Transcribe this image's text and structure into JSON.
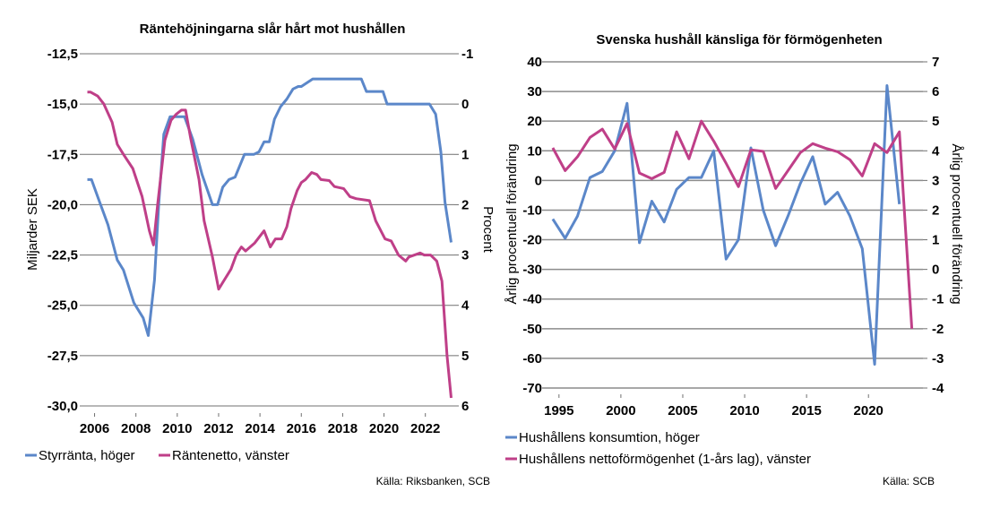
{
  "colors": {
    "blue": "#5B87C9",
    "magenta": "#BF3F88",
    "grid": "#707070"
  },
  "chart_data": [
    {
      "type": "line",
      "title": "Räntehöjningarna slår hårt mot hushållen",
      "ylabel_left": "Miljarder SEK",
      "ylabel_right": "Procent",
      "ylim_left": [
        -30.0,
        -12.5
      ],
      "yticks_left": [
        "-12,5",
        "-15,0",
        "-17,5",
        "-20,0",
        "-22,5",
        "-25,0",
        "-27,5",
        "-30,0"
      ],
      "ylim_right": [
        -1,
        6
      ],
      "right_axis_inverted": true,
      "yticks_right": [
        "-1",
        "0",
        "1",
        "2",
        "3",
        "4",
        "5",
        "6"
      ],
      "xticks": [
        "2006",
        "2008",
        "2010",
        "2012",
        "2014",
        "2016",
        "2018",
        "2020",
        "2022"
      ],
      "xlim": [
        2005.5,
        2023.4
      ],
      "grid": true,
      "legend_position": "bottom",
      "source": "Källa: Riksbanken, SCB",
      "series": [
        {
          "name": "Styrränta, höger",
          "axis": "right",
          "color": "#5B87C9",
          "x": [
            2005.65,
            2005.85,
            2006.2,
            2006.65,
            2007.1,
            2007.4,
            2007.9,
            2008.35,
            2008.6,
            2008.9,
            2009.1,
            2009.35,
            2009.65,
            2010.35,
            2010.75,
            2011.2,
            2011.7,
            2011.95,
            2012.2,
            2012.5,
            2012.8,
            2013.25,
            2013.7,
            2013.95,
            2014.2,
            2014.45,
            2014.7,
            2015.0,
            2015.3,
            2015.6,
            2015.85,
            2016.0,
            2016.55,
            2018.9,
            2019.15,
            2019.95,
            2020.15,
            2022.2,
            2022.5,
            2022.75,
            2022.95,
            2023.25
          ],
          "values": [
            1.5,
            1.5,
            1.9,
            2.4,
            3.1,
            3.3,
            3.95,
            4.25,
            4.6,
            3.5,
            2.0,
            0.6,
            0.25,
            0.25,
            0.7,
            1.4,
            2.0,
            2.0,
            1.65,
            1.5,
            1.45,
            1.0,
            1.0,
            0.95,
            0.75,
            0.75,
            0.3,
            0.05,
            -0.1,
            -0.3,
            -0.35,
            -0.35,
            -0.5,
            -0.5,
            -0.25,
            -0.25,
            0.0,
            0.0,
            0.2,
            0.95,
            1.95,
            2.75
          ]
        },
        {
          "name": "Räntenetto, vänster",
          "axis": "left",
          "color": "#BF3F88",
          "x": [
            2005.65,
            2005.8,
            2006.15,
            2006.45,
            2006.85,
            2007.1,
            2007.4,
            2007.85,
            2008.3,
            2008.65,
            2008.85,
            2009.05,
            2009.4,
            2009.7,
            2009.95,
            2010.2,
            2010.4,
            2010.65,
            2011.05,
            2011.3,
            2011.7,
            2012.0,
            2012.3,
            2012.6,
            2012.85,
            2013.1,
            2013.3,
            2013.75,
            2014.2,
            2014.5,
            2014.75,
            2015.05,
            2015.3,
            2015.5,
            2015.8,
            2016.0,
            2016.2,
            2016.5,
            2016.75,
            2016.95,
            2017.35,
            2017.6,
            2018.05,
            2018.35,
            2018.65,
            2019.3,
            2019.6,
            2020.05,
            2020.35,
            2020.7,
            2021.05,
            2021.2,
            2021.75,
            2021.95,
            2022.25,
            2022.55,
            2022.8,
            2023.05,
            2023.25
          ],
          "values": [
            -14.4,
            -14.4,
            -14.6,
            -15.0,
            -15.9,
            -17.0,
            -17.5,
            -18.2,
            -19.6,
            -21.3,
            -22.0,
            -20.0,
            -16.8,
            -15.8,
            -15.5,
            -15.3,
            -15.3,
            -16.7,
            -18.75,
            -20.8,
            -22.6,
            -24.2,
            -23.7,
            -23.2,
            -22.5,
            -22.1,
            -22.3,
            -21.9,
            -21.3,
            -22.1,
            -21.7,
            -21.7,
            -21.1,
            -20.2,
            -19.3,
            -18.9,
            -18.75,
            -18.4,
            -18.5,
            -18.75,
            -18.8,
            -19.1,
            -19.2,
            -19.6,
            -19.7,
            -19.8,
            -20.8,
            -21.7,
            -21.8,
            -22.5,
            -22.8,
            -22.6,
            -22.4,
            -22.5,
            -22.5,
            -22.8,
            -23.8,
            -27.5,
            -29.6
          ]
        }
      ]
    },
    {
      "type": "line",
      "title": "Svenska hushåll känsliga för förmögenheten",
      "ylabel_left": "Årlig procentuell förändring",
      "ylabel_right": "Årlig procentuell förändring",
      "ylim_left": [
        -70,
        40
      ],
      "yticks_left": [
        "40",
        "30",
        "20",
        "10",
        "0",
        "-10",
        "-20",
        "-30",
        "-40",
        "-50",
        "-60",
        "-70"
      ],
      "ylim_right": [
        -4,
        7
      ],
      "yticks_right": [
        "7",
        "6",
        "5",
        "4",
        "3",
        "2",
        "1",
        "0",
        "-1",
        "-2",
        "-3",
        "-4"
      ],
      "xticks": [
        "1995",
        "2000",
        "2005",
        "2010",
        "2015",
        "2020"
      ],
      "xlim": [
        1994,
        2024.4
      ],
      "grid": true,
      "legend_position": "bottom",
      "source": "Källa: SCB",
      "series": [
        {
          "name": "Hushållens konsumtion, höger",
          "axis": "right",
          "color": "#5B87C9",
          "x": [
            1994.5,
            1995.5,
            1996.5,
            1997.5,
            1998.5,
            1999.5,
            2000.5,
            2001.5,
            2002.5,
            2003.5,
            2004.5,
            2005.5,
            2006.5,
            2007.5,
            2008.5,
            2009.5,
            2010.5,
            2011.5,
            2012.5,
            2013.5,
            2014.5,
            2015.5,
            2016.5,
            2017.5,
            2018.5,
            2019.5,
            2020.5,
            2021.5,
            2022.5
          ],
          "values": [
            1.7,
            1.05,
            1.8,
            3.1,
            3.3,
            4.0,
            5.6,
            0.9,
            2.3,
            1.6,
            2.7,
            3.1,
            3.1,
            4.0,
            0.35,
            1.0,
            4.1,
            2.0,
            0.8,
            1.8,
            2.9,
            3.8,
            2.2,
            2.6,
            1.8,
            0.7,
            -3.2,
            6.2,
            2.2
          ]
        },
        {
          "name": "Hushållens nettoförmögenhet (1-års lag), vänster",
          "axis": "left",
          "color": "#BF3F88",
          "x": [
            1994.5,
            1995.5,
            1996.5,
            1997.5,
            1998.5,
            1999.5,
            2000.5,
            2001.5,
            2002.5,
            2003.5,
            2004.5,
            2005.5,
            2006.5,
            2007.5,
            2008.5,
            2009.5,
            2010.5,
            2011.5,
            2012.5,
            2013.5,
            2014.5,
            2015.5,
            2016.5,
            2017.5,
            2018.5,
            2019.5,
            2020.5,
            2021.5,
            2022.5,
            2023.5
          ],
          "values": [
            11,
            3.3,
            8,
            14.5,
            17.3,
            10.6,
            19.2,
            2.5,
            0.6,
            2.7,
            16.4,
            7.3,
            20,
            13.3,
            5.8,
            -2.1,
            10.3,
            9.8,
            -2.7,
            3.3,
            9.4,
            12.4,
            10.9,
            9.7,
            7,
            1.5,
            12.4,
            9.4,
            16.4,
            -50
          ]
        }
      ]
    }
  ]
}
